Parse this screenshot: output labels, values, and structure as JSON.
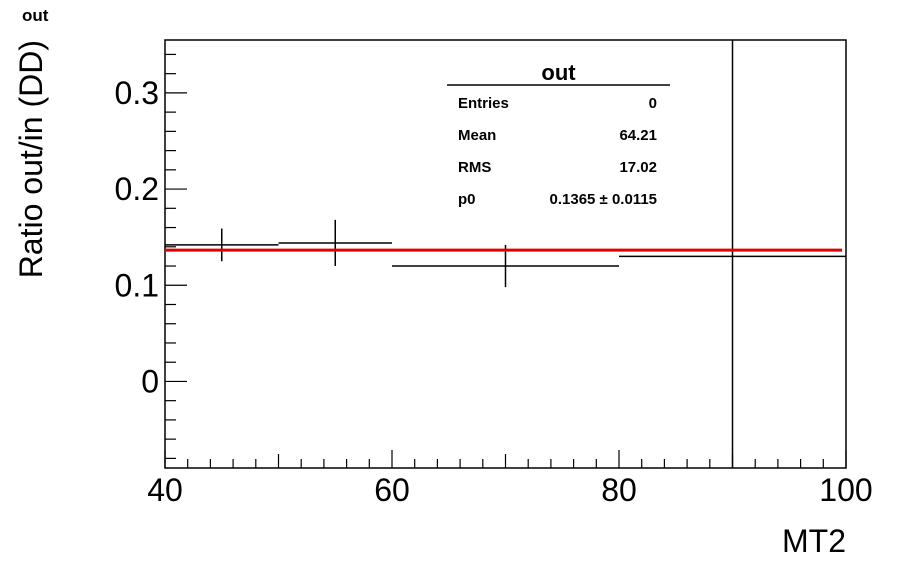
{
  "corner_title": "out",
  "chart_data": {
    "type": "scatter",
    "title": "out",
    "xlabel": "MT2",
    "ylabel": "Ratio out/in (DD)",
    "xlim": [
      40,
      100
    ],
    "ylim": [
      -0.09,
      0.355
    ],
    "x_ticks": [
      40,
      60,
      80,
      100
    ],
    "x_tick_labels": [
      "40",
      "60",
      "80",
      "100"
    ],
    "y_ticks": [
      0,
      0.1,
      0.2,
      0.3
    ],
    "y_tick_labels": [
      "0",
      "0.1",
      "0.2",
      "0.3"
    ],
    "grid": false,
    "series": [
      {
        "points": [
          {
            "x": 45,
            "x_low": 40,
            "x_high": 50,
            "y": 0.142,
            "y_err": 0.017
          },
          {
            "x": 55,
            "x_low": 50,
            "x_high": 60,
            "y": 0.144,
            "y_err": 0.024
          },
          {
            "x": 70,
            "x_low": 60,
            "x_high": 80,
            "y": 0.12,
            "y_err": 0.022
          },
          {
            "x": 90,
            "x_low": 80,
            "x_high": 100,
            "y": 0.13,
            "y_err": 0.26
          }
        ],
        "color": "#000000"
      }
    ],
    "fit": {
      "name": "p0",
      "y": 0.1365,
      "x_range": [
        40,
        100
      ],
      "color": "#e00000"
    },
    "stats_box": {
      "title": "out",
      "rows": [
        {
          "label": "Entries",
          "value": "0"
        },
        {
          "label": "Mean",
          "value": "64.21"
        },
        {
          "label": "RMS",
          "value": "17.02"
        },
        {
          "label": "p0",
          "value": "0.1365 ± 0.0115"
        }
      ]
    }
  }
}
